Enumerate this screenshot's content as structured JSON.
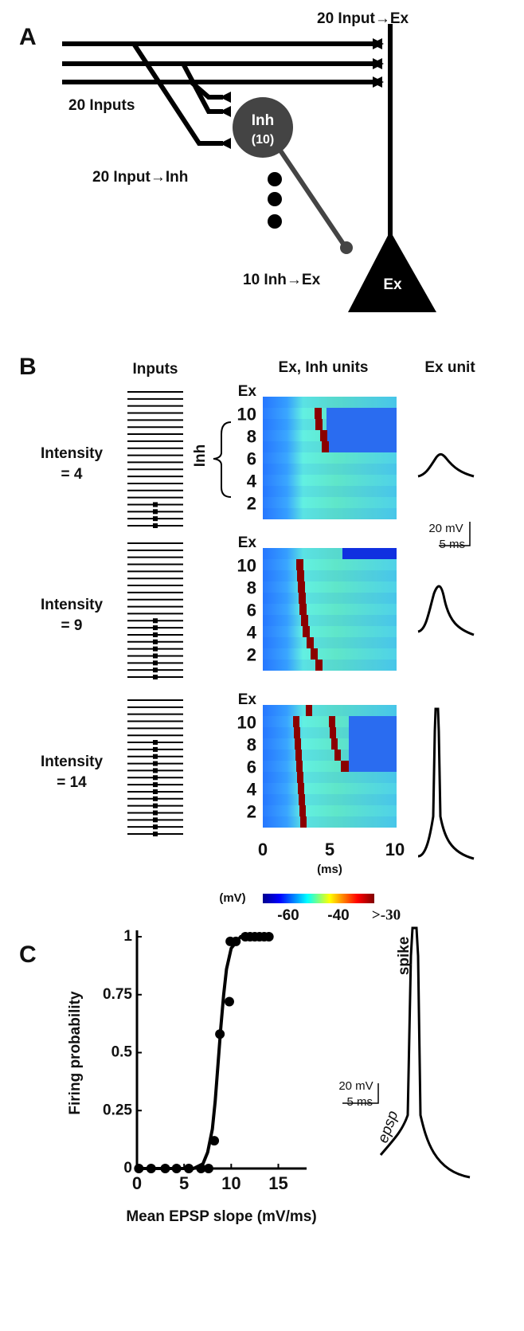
{
  "panel_a": {
    "label": "A",
    "input_ex": "20 Input→Ex",
    "inputs": "20 Inputs",
    "input_inh": "20 Input→Inh",
    "inh_ex": "10 Inh→Ex",
    "inh": "Inh",
    "inh_count": "(10)",
    "ex": "Ex"
  },
  "panel_b": {
    "label": "B",
    "col_inputs": "Inputs",
    "col_units": "Ex, Inh units",
    "col_exunit": "Ex unit",
    "row_labels": [
      "Ex",
      "10",
      "8",
      "6",
      "4",
      "2"
    ],
    "inh_label": "Inh",
    "rows": [
      {
        "label": "Intensity",
        "value_label": "= 4",
        "intensity": 4
      },
      {
        "label": "Intensity",
        "value_label": "= 9",
        "intensity": 9
      },
      {
        "label": "Intensity",
        "value_label": "= 14",
        "intensity": 14
      }
    ],
    "scale_mv": "20 mV",
    "scale_ms": "5 ms",
    "time_ticks": [
      "0",
      "5",
      "10"
    ],
    "time_unit": "(ms)",
    "colorbar_unit": "(mV)",
    "colorbar_ticks": [
      "-60",
      "-40",
      ">-30"
    ]
  },
  "panel_c": {
    "label": "C",
    "scale_mv": "20 mV",
    "scale_ms": "5 ms",
    "spike": "spike",
    "epsp": "epsp"
  },
  "chart_data": {
    "type": "scatter",
    "x_label": "Mean EPSP slope (mV/ms)",
    "y_label": "Firing probability",
    "xlim": [
      0,
      18
    ],
    "ylim": [
      0,
      1
    ],
    "xticks": [
      0,
      5,
      10,
      15
    ],
    "yticks": [
      0,
      0.25,
      0.5,
      0.75,
      1
    ],
    "color": "#000000",
    "x": [
      0.2,
      1.5,
      3,
      4.2,
      5.5,
      6.8,
      7.6,
      8.2,
      8.8,
      9.8,
      9.9,
      10.5,
      11.5,
      12,
      12.5,
      13,
      13.5,
      14
    ],
    "values": [
      0,
      0,
      0,
      0,
      0,
      0,
      0,
      0.12,
      0.58,
      0.72,
      0.98,
      0.98,
      1,
      1,
      1,
      1,
      1,
      1
    ],
    "fit_x": [
      0,
      6,
      7,
      7.5,
      8,
      8.3,
      8.6,
      8.9,
      9.2,
      9.5,
      10,
      11,
      14
    ],
    "fit_y": [
      0,
      0,
      0.02,
      0.07,
      0.17,
      0.29,
      0.45,
      0.61,
      0.75,
      0.86,
      0.95,
      1,
      1
    ]
  }
}
